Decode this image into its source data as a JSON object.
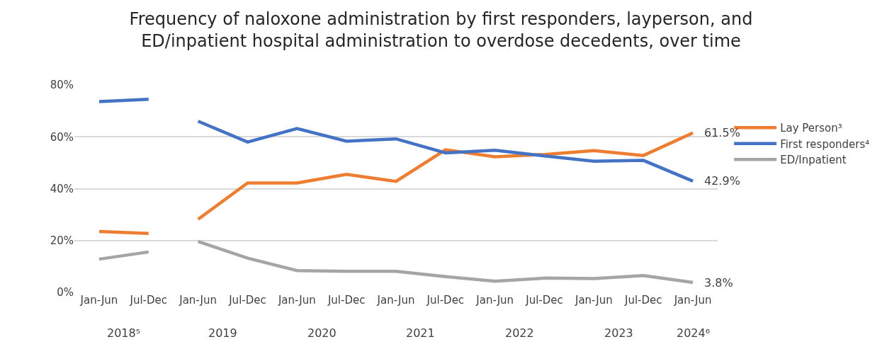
{
  "chart_data": {
    "type": "line",
    "title": "Frequency of naloxone administration by first responders, layperson, and ED/inpatient hospital administration to overdose decedents, over time",
    "categories": [
      "Jan-Jun",
      "Jul-Dec",
      "Jan-Jun",
      "Jul-Dec",
      "Jan-Jun",
      "Jul-Dec",
      "Jan-Jun",
      "Jul-Dec",
      "Jan-Jun",
      "Jul-Dec",
      "Jan-Jun",
      "Jul-Dec",
      "Jan-Jun"
    ],
    "series": [
      {
        "name": "Lay Person³",
        "color": "#ed7d31",
        "values": [
          null,
          null,
          28.2,
          42.2,
          42.2,
          45.5,
          42.8,
          55.0,
          52.3,
          53.2,
          54.7,
          52.8,
          61.5
        ],
        "value_labels": [
          null,
          null,
          null,
          null,
          null,
          null,
          null,
          null,
          null,
          null,
          null,
          null,
          "61.5%"
        ]
      },
      {
        "name": "First responders⁴",
        "color": "#4472c4",
        "values": [
          null,
          null,
          66.0,
          58.0,
          63.2,
          58.3,
          59.2,
          53.8,
          54.8,
          52.6,
          50.6,
          50.9,
          42.9
        ],
        "value_labels": [
          null,
          null,
          null,
          null,
          null,
          null,
          null,
          null,
          null,
          null,
          null,
          null,
          "42.9%"
        ]
      },
      {
        "name": "ED/Inpatient",
        "color": "#a5a5a5",
        "values": [
          null,
          null,
          19.6,
          13.2,
          8.4,
          8.1,
          8.1,
          6.1,
          4.3,
          5.5,
          5.3,
          6.5,
          3.8
        ],
        "value_labels": [
          null,
          null,
          null,
          null,
          null,
          null,
          null,
          null,
          null,
          null,
          null,
          null,
          "3.8%"
        ]
      },
      {
        "color": "#ed7d31",
        "values": [
          23.5,
          22.7,
          null,
          null,
          null,
          null,
          null,
          null,
          null,
          null,
          null,
          null,
          null
        ]
      },
      {
        "color": "#4472c4",
        "values": [
          73.6,
          74.5,
          null,
          null,
          null,
          null,
          null,
          null,
          null,
          null,
          null,
          null,
          null
        ]
      },
      {
        "color": "#a5a5a5",
        "values": [
          12.8,
          15.6,
          null,
          null,
          null,
          null,
          null,
          null,
          null,
          null,
          null,
          null,
          null
        ]
      }
    ],
    "ylim": [
      0,
      80
    ],
    "yticks": [
      {
        "value": 0,
        "label": "0%"
      },
      {
        "value": 20,
        "label": "20%"
      },
      {
        "value": 40,
        "label": "40%"
      },
      {
        "value": 60,
        "label": "60%"
      },
      {
        "value": 80,
        "label": "80%"
      }
    ],
    "grid": "y",
    "legend": "right",
    "marker": "none",
    "line_style": "solid",
    "annotations": [
      "2018⁵",
      "2019",
      "2020",
      "2021",
      "2022",
      "2023",
      "2024⁶"
    ]
  }
}
